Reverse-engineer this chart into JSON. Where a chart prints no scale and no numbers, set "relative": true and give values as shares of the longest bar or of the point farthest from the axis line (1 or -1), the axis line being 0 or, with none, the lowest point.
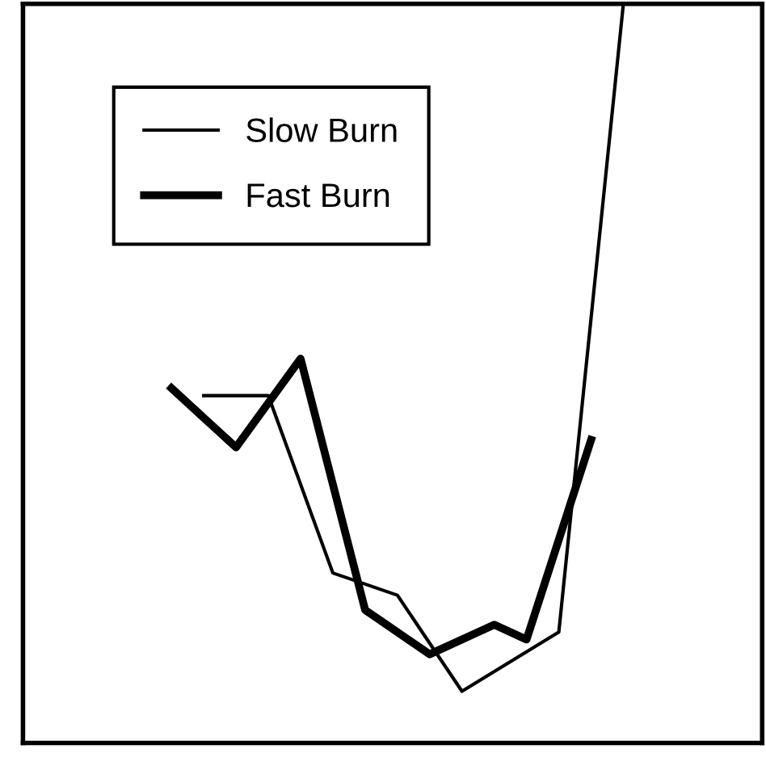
{
  "chart_data": {
    "type": "line",
    "relative": true,
    "categories": [
      null,
      null,
      null,
      null,
      null,
      null,
      null,
      null,
      null,
      null,
      null,
      null,
      null,
      null,
      null
    ],
    "legend": "top left",
    "grid": false,
    "marker": "none",
    "line_style": "solid",
    "series": [
      {
        "name": "Slow Burn",
        "color": "#000000",
        "values": [
          null,
          0.47,
          null,
          0.47,
          null,
          0.23,
          null,
          0.2,
          null,
          0.07,
          null,
          null,
          0.15,
          null,
          1.0
        ]
      },
      {
        "name": "Fast Burn",
        "color": "#000000",
        "values": [
          0.48,
          null,
          0.4,
          null,
          0.52,
          null,
          0.18,
          null,
          0.12,
          null,
          0.16,
          0.14,
          null,
          0.41,
          null
        ]
      }
    ]
  }
}
